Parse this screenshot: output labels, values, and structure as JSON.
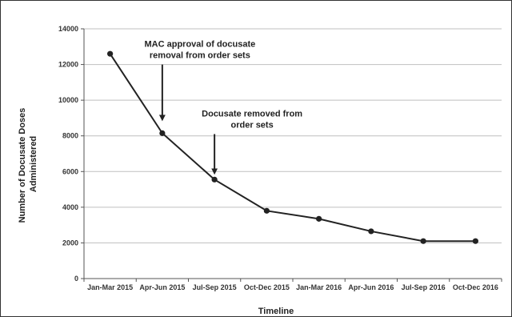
{
  "chart_data": {
    "type": "line",
    "title": "",
    "xlabel": "Timeline",
    "ylabel_lines": [
      "Number of Docusate Doses",
      "Administered"
    ],
    "categories": [
      "Jan-Mar 2015",
      "Apr-Jun 2015",
      "Jul-Sep 2015",
      "Oct-Dec 2015",
      "Jan-Mar 2016",
      "Apr-Jun 2016",
      "Jul-Sep 2016",
      "Oct-Dec 2016"
    ],
    "series": [
      {
        "values": [
          12600,
          8150,
          5550,
          3800,
          3350,
          2650,
          2100,
          2100
        ]
      }
    ],
    "ylim": [
      0,
      14000
    ],
    "yticks": [
      0,
      2000,
      4000,
      6000,
      8000,
      10000,
      12000,
      14000
    ],
    "grid": true,
    "legend": "none",
    "colors": {
      "line": "#222222",
      "grid": "#bfbfbf",
      "axis": "#555555"
    },
    "annotations": [
      {
        "lines": [
          "MAC approval of docusate",
          "removal from order sets"
        ],
        "category": "Apr-Jun 2015",
        "arrow_top": 12000,
        "arrow_tip": 9000
      },
      {
        "lines": [
          "Docusate removed  from",
          "order sets"
        ],
        "category": "Jul-Sep 2015",
        "arrow_top": 8100,
        "arrow_tip": 6000
      }
    ]
  }
}
